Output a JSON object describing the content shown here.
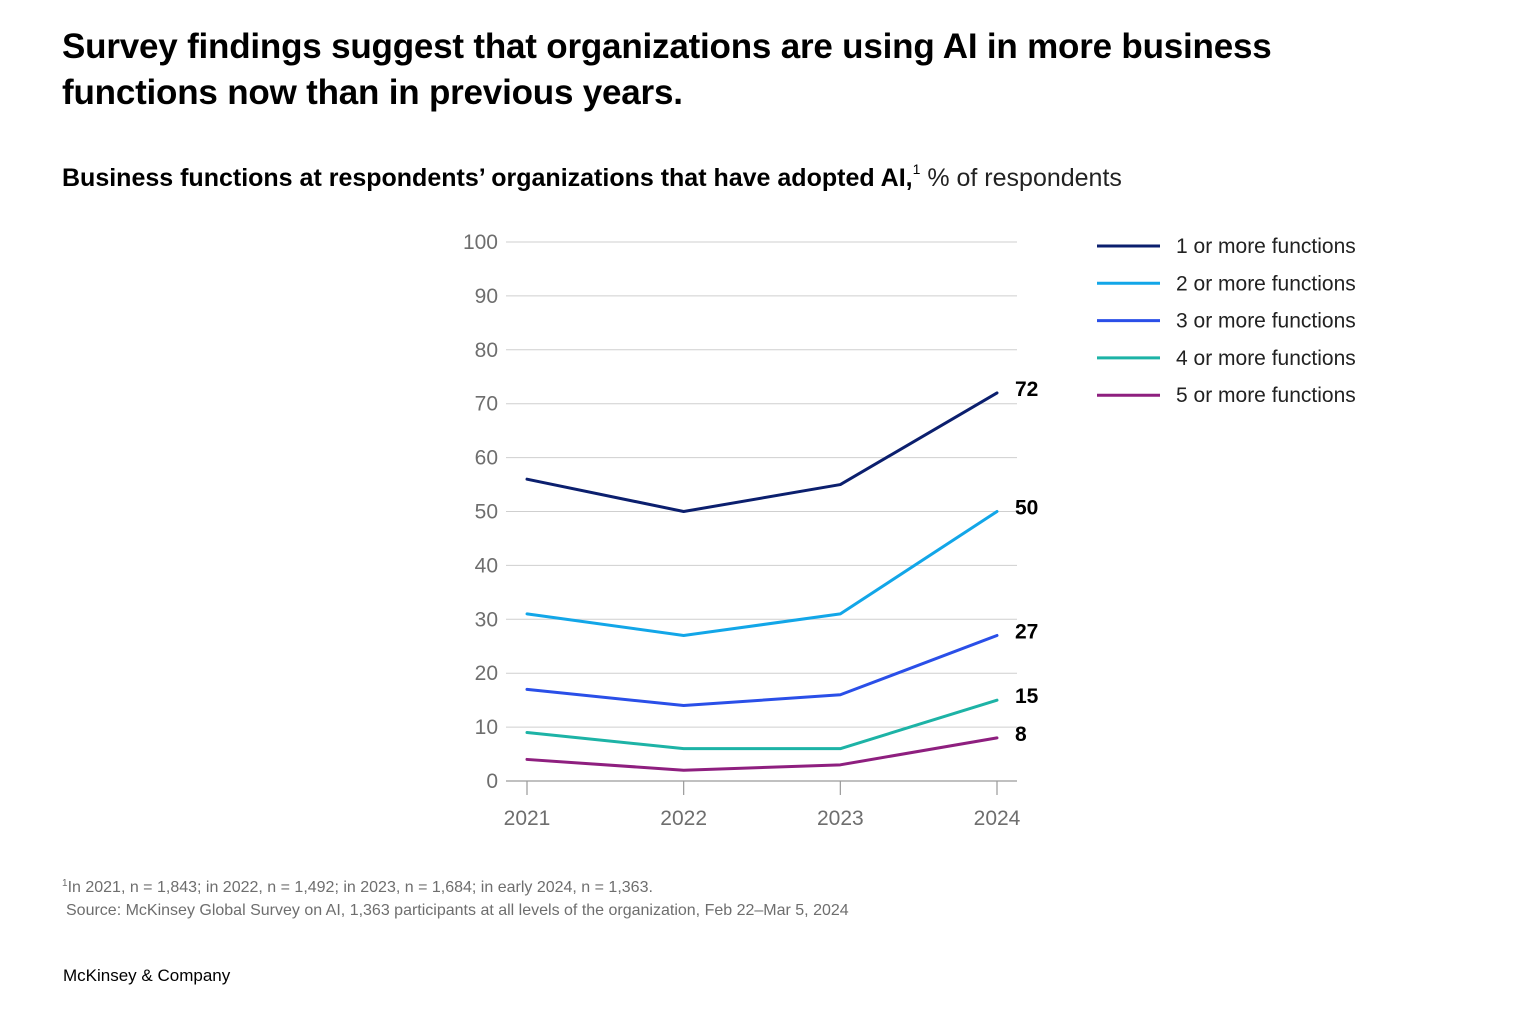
{
  "headline": "Survey findings suggest that organizations are using AI in more business functions now than in previous years.",
  "subtitle": {
    "bold": "Business functions at respondents’ organizations that have adopted AI,",
    "footnote_ref": "1",
    "normal": " % of respondents"
  },
  "chart_data": {
    "type": "line",
    "title": "Business functions at respondents’ organizations that have adopted AI, % of respondents",
    "x": [
      "2021",
      "2022",
      "2023",
      "2024"
    ],
    "ylim": [
      0,
      100
    ],
    "yticks": [
      0,
      10,
      20,
      30,
      40,
      50,
      60,
      70,
      80,
      90,
      100
    ],
    "grid": true,
    "legend_position": "top-right",
    "series": [
      {
        "name": "1 or more functions",
        "color": "#0b1f6e",
        "values": [
          56,
          50,
          55,
          72
        ],
        "end_label": "72"
      },
      {
        "name": "2 or more functions",
        "color": "#12a6e8",
        "values": [
          31,
          27,
          31,
          50
        ],
        "end_label": "50"
      },
      {
        "name": "3 or more functions",
        "color": "#2a4fe8",
        "values": [
          17,
          14,
          16,
          27
        ],
        "end_label": "27"
      },
      {
        "name": "4 or more functions",
        "color": "#1db3a6",
        "values": [
          9,
          6,
          6,
          15
        ],
        "end_label": "15"
      },
      {
        "name": "5 or more functions",
        "color": "#8e1f7f",
        "values": [
          4,
          2,
          3,
          8
        ],
        "end_label": "8"
      }
    ]
  },
  "footnote": {
    "marker": "1",
    "text": "In 2021, n = 1,843; in 2022, n = 1,492; in 2023, n = 1,684; in early 2024, n = 1,363.",
    "source": "Source: McKinsey Global Survey on AI, 1,363 participants at all levels of the organization, Feb 22–Mar 5, 2024"
  },
  "brand": "McKinsey & Company"
}
